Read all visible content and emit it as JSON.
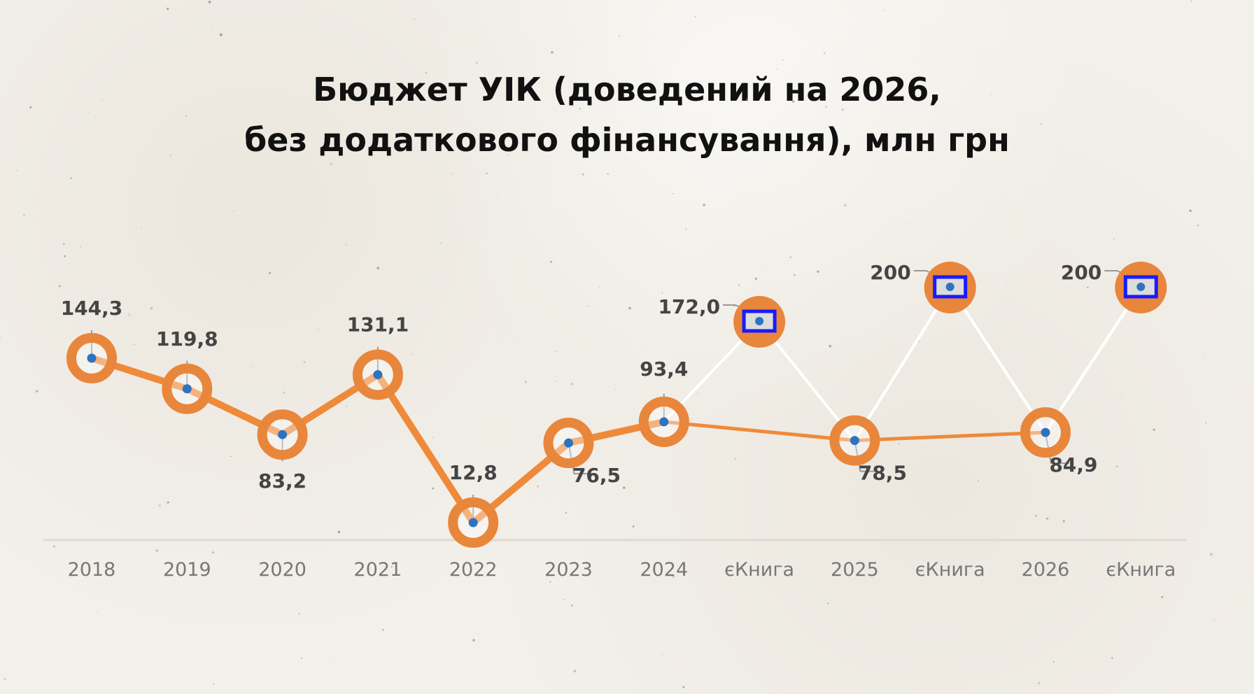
{
  "title_lines": [
    "Бюджет УІК (доведений на 2026,",
    "без додаткового фінансування), млн грн"
  ],
  "colors": {
    "line": "#ee8a3a",
    "ring": "#e8863c",
    "dot": "#2d73c0",
    "connector": "#ffffff",
    "marker_box": "#1a1aff",
    "label": "#444444",
    "axis": "#dedad3",
    "tick": "#777777"
  },
  "chart_data": {
    "type": "line",
    "categories": [
      "2018",
      "2019",
      "2020",
      "2021",
      "2022",
      "2023",
      "2024",
      "єКнига",
      "2025",
      "єКнига",
      "2026",
      "єКнига"
    ],
    "series": [
      {
        "values": [
          144.3,
          119.8,
          83.2,
          131.1,
          12.8,
          76.5,
          93.4,
          null,
          78.5,
          null,
          84.9,
          null
        ],
        "labels": [
          "144,3",
          "119,8",
          "83,2",
          "131,1",
          "12,8",
          "76,5",
          "93,4",
          null,
          "78,5",
          null,
          "84,9",
          null
        ]
      },
      {
        "values": [
          null,
          null,
          null,
          null,
          null,
          null,
          null,
          172.0,
          null,
          200,
          null,
          200
        ],
        "labels": [
          null,
          null,
          null,
          null,
          null,
          null,
          null,
          "172,0",
          null,
          "200",
          null,
          "200"
        ]
      }
    ],
    "connector_pairs": [
      [
        6,
        7
      ],
      [
        7,
        8
      ],
      [
        8,
        9
      ],
      [
        9,
        10
      ],
      [
        10,
        11
      ]
    ],
    "label_position": [
      "above",
      "above",
      "below",
      "above",
      "above",
      "below-right",
      "above",
      "left",
      "below-right",
      "left",
      "below-right",
      "left"
    ],
    "grid": false,
    "legend": "none"
  }
}
